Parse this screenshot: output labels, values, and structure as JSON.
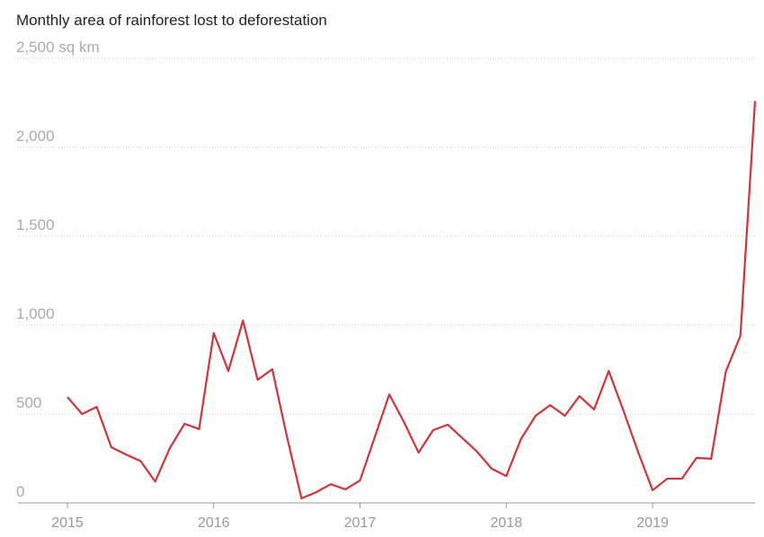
{
  "chart_data": {
    "type": "line",
    "title": "Monthly area of rainforest lost to deforestation",
    "x": [
      2015.0,
      2015.1,
      2015.2,
      2015.3,
      2015.4,
      2015.5,
      2015.6,
      2015.7,
      2015.8,
      2015.9,
      2016.0,
      2016.1,
      2016.2,
      2016.3,
      2016.4,
      2016.5,
      2016.6,
      2016.7,
      2016.8,
      2016.9,
      2017.0,
      2017.1,
      2017.2,
      2017.3,
      2017.4,
      2017.5,
      2017.6,
      2017.7,
      2017.8,
      2017.9,
      2018.0,
      2018.1,
      2018.2,
      2018.3,
      2018.4,
      2018.5,
      2018.6,
      2018.7,
      2018.8,
      2018.9,
      2019.0,
      2019.1,
      2019.2,
      2019.3,
      2019.4,
      2019.5,
      2019.6,
      2019.7
    ],
    "series": [
      {
        "color": "#d0343d",
        "values": [
          595,
          500,
          540,
          313,
          272,
          235,
          120,
          308,
          445,
          415,
          955,
          742,
          1025,
          692,
          752,
          374,
          25,
          60,
          105,
          76,
          126,
          368,
          610,
          455,
          283,
          409,
          440,
          364,
          288,
          192,
          151,
          359,
          490,
          550,
          490,
          600,
          525,
          742,
          520,
          288,
          71,
          136,
          136,
          253,
          248,
          737,
          940,
          2260
        ]
      }
    ],
    "xlim": [
      2014.662,
      2019.7
    ],
    "xticks": [
      2015,
      2016,
      2017,
      2018,
      2019
    ],
    "ylim": [
      0,
      2500
    ],
    "yticks": [
      0,
      500,
      {
        "value": 1000,
        "label": "1,000"
      },
      {
        "value": 1500,
        "label": "1,500"
      },
      {
        "value": 2000,
        "label": "2,000"
      },
      {
        "value": 2500,
        "label": "2,500 sq km"
      }
    ],
    "grid": true
  }
}
